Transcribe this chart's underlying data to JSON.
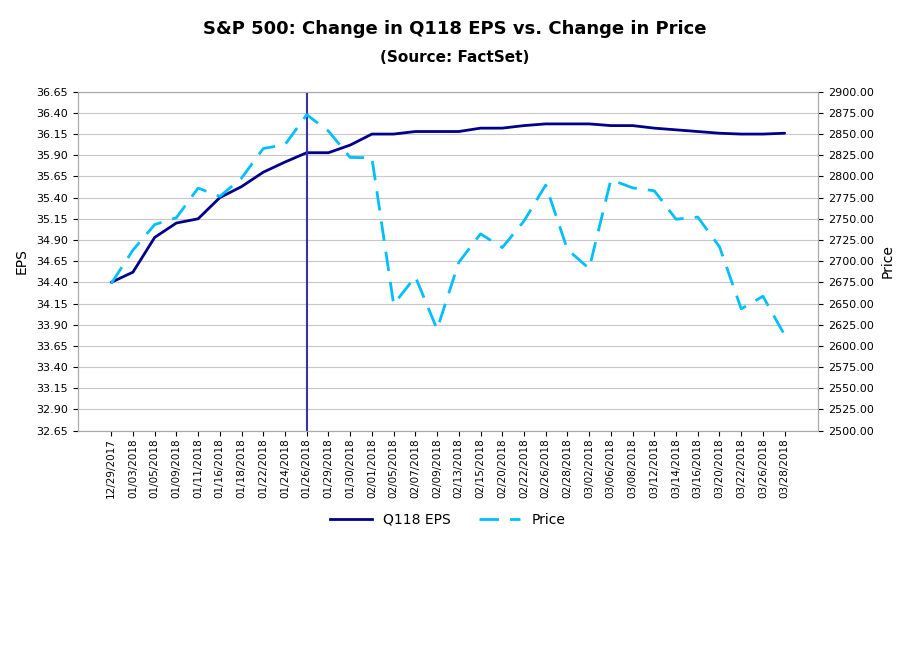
{
  "title": "S&P 500: Change in Q118 EPS vs. Change in Price",
  "subtitle": "(Source: FactSet)",
  "ylabel_left": "EPS",
  "ylabel_right": "Price",
  "vline_date_index": 9,
  "vline_color": "#3333aa",
  "eps_color": "#00008B",
  "price_color": "#00BFFF",
  "dates": [
    "12/29/2017",
    "01/03/2018",
    "01/05/2018",
    "01/09/2018",
    "01/11/2018",
    "01/16/2018",
    "01/18/2018",
    "01/22/2018",
    "01/24/2018",
    "01/26/2018",
    "01/29/2018",
    "01/30/2018",
    "02/01/2018",
    "02/05/2018",
    "02/07/2018",
    "02/09/2018",
    "02/13/2018",
    "02/15/2018",
    "02/20/2018",
    "02/22/2018",
    "02/26/2018",
    "02/28/2018",
    "03/02/2018",
    "03/06/2018",
    "03/08/2018",
    "03/12/2018",
    "03/14/2018",
    "03/16/2018",
    "03/20/2018",
    "03/22/2018",
    "03/26/2018",
    "03/28/2018"
  ],
  "eps": [
    34.4,
    34.52,
    34.93,
    35.1,
    35.15,
    35.4,
    35.53,
    35.7,
    35.82,
    35.93,
    35.93,
    36.02,
    36.15,
    36.15,
    36.18,
    36.18,
    36.18,
    36.22,
    36.22,
    36.25,
    36.27,
    36.27,
    36.27,
    36.25,
    36.25,
    36.22,
    36.2,
    36.18,
    36.16,
    36.15,
    36.15,
    36.16
  ],
  "price": [
    2673.61,
    2713.06,
    2743.15,
    2751.29,
    2786.24,
    2776.42,
    2798.03,
    2832.97,
    2837.54,
    2872.87,
    2853.53,
    2822.43,
    2821.98,
    2648.94,
    2681.66,
    2619.55,
    2698.63,
    2732.22,
    2716.0,
    2747.3,
    2789.82,
    2713.83,
    2691.25,
    2796.11,
    2786.57,
    2783.02,
    2749.48,
    2752.01,
    2716.94,
    2643.69,
    2658.55,
    2612.62
  ],
  "ylim_left": [
    32.65,
    36.65
  ],
  "ylim_right": [
    2500.0,
    2900.0
  ],
  "yticks_left": [
    32.65,
    32.9,
    33.15,
    33.4,
    33.65,
    33.9,
    34.15,
    34.4,
    34.65,
    34.9,
    35.15,
    35.4,
    35.65,
    35.9,
    36.15,
    36.4,
    36.65
  ],
  "yticks_right": [
    2500,
    2525,
    2550,
    2575,
    2600,
    2625,
    2650,
    2675,
    2700,
    2725,
    2750,
    2775,
    2800,
    2825,
    2850,
    2875,
    2900
  ],
  "grid_color": "#c8c8c8",
  "background_color": "#ffffff",
  "legend_eps_label": "Q118 EPS",
  "legend_price_label": "Price"
}
